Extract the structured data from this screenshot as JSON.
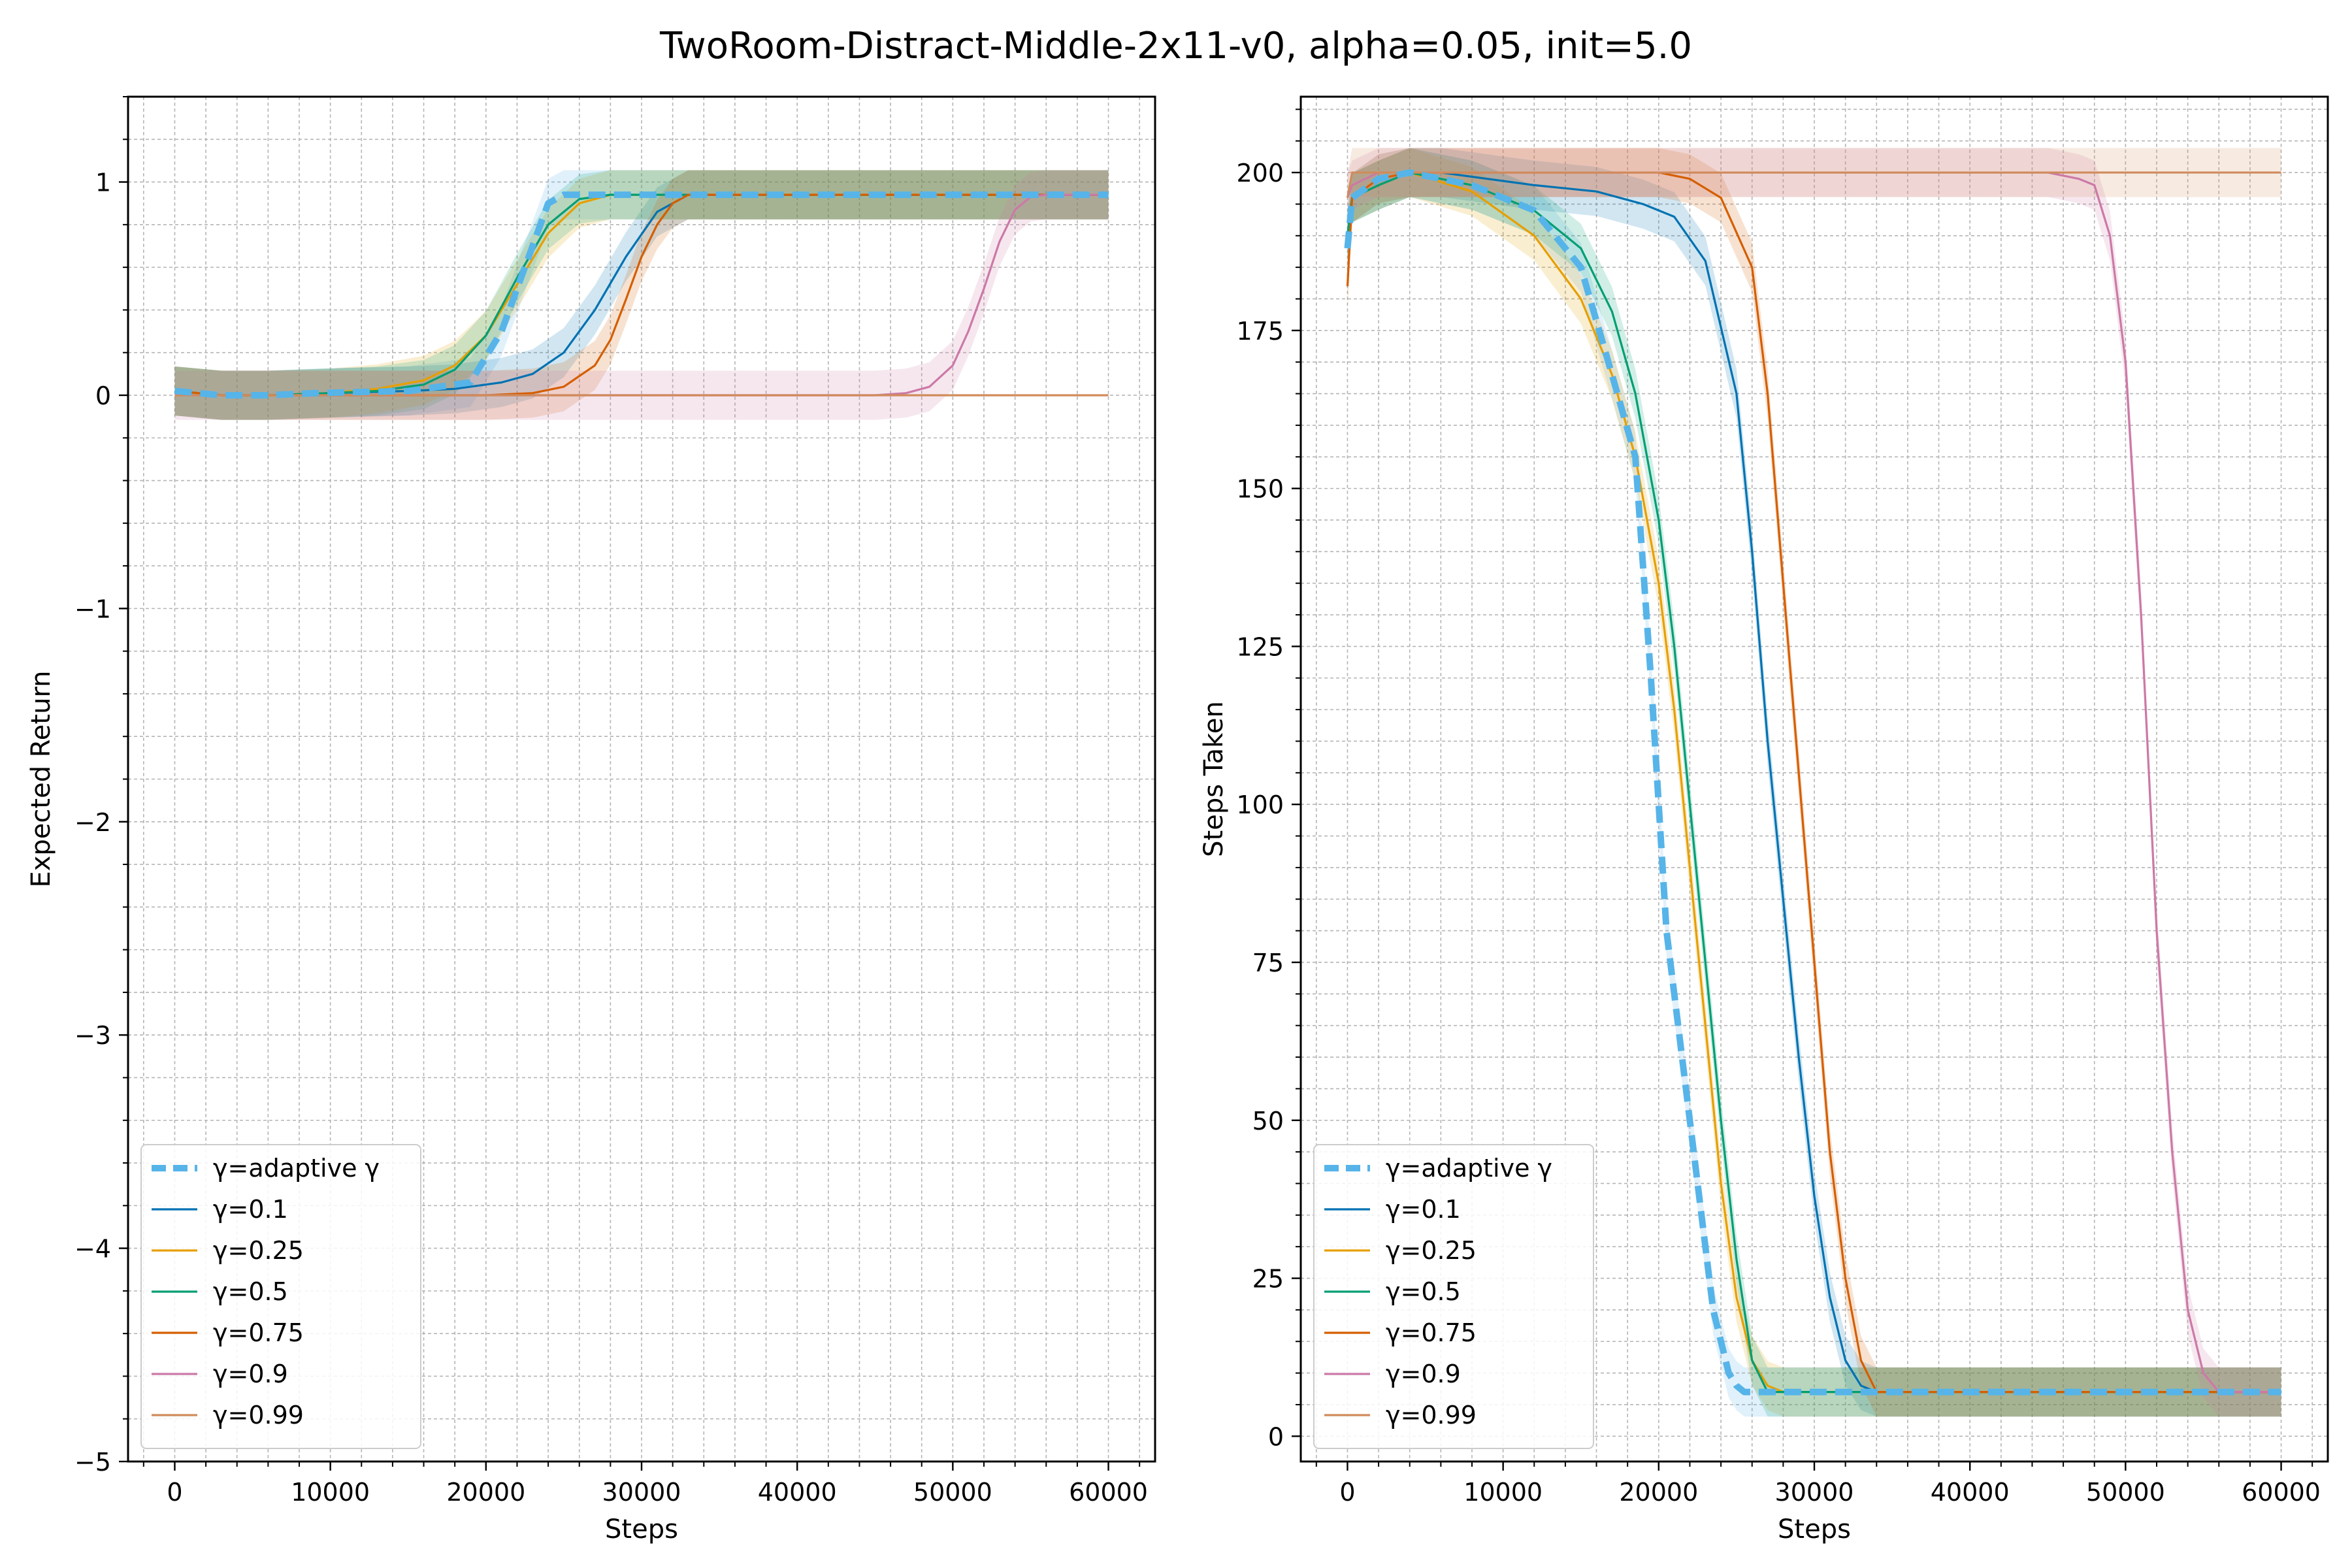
{
  "figure": {
    "title": "TwoRoom-Distract-Middle-2x11-v0, alpha=0.05, init=5.0"
  },
  "chart_data": [
    {
      "type": "line",
      "xlabel": "Steps",
      "ylabel": "Expected Return",
      "xlim": [
        -3000,
        63000
      ],
      "ylim": [
        -5,
        1.4
      ],
      "xticks": [
        0,
        10000,
        20000,
        30000,
        40000,
        50000,
        60000
      ],
      "yticks": [
        -5,
        -4,
        -3,
        -2,
        -1,
        0,
        1
      ],
      "grid": true,
      "legend": "lower-left",
      "series": [
        {
          "name": "γ=adaptive γ",
          "color": "#56B4E9",
          "dashed": true,
          "x": [
            0,
            3000,
            6000,
            9000,
            15000,
            19000,
            21000,
            23000,
            24000,
            25000,
            60000
          ],
          "y": [
            0.02,
            0,
            0,
            0.01,
            0.02,
            0.06,
            0.3,
            0.7,
            0.9,
            0.94,
            0.94
          ]
        },
        {
          "name": "γ=0.1",
          "color": "#0072B2",
          "x": [
            0,
            3000,
            6000,
            10000,
            15000,
            18000,
            21000,
            23000,
            25000,
            27000,
            29000,
            31000,
            33000,
            60000
          ],
          "y": [
            0.02,
            0,
            0,
            0.01,
            0.02,
            0.03,
            0.06,
            0.1,
            0.2,
            0.4,
            0.65,
            0.86,
            0.94,
            0.94
          ]
        },
        {
          "name": "γ=0.25",
          "color": "#E69F00",
          "x": [
            0,
            3000,
            6000,
            10000,
            13000,
            16000,
            18000,
            20000,
            22000,
            24000,
            26000,
            28000,
            60000
          ],
          "y": [
            0.02,
            0,
            0,
            0.01,
            0.03,
            0.07,
            0.14,
            0.28,
            0.52,
            0.76,
            0.9,
            0.94,
            0.94
          ]
        },
        {
          "name": "γ=0.5",
          "color": "#009E73",
          "x": [
            0,
            3000,
            6000,
            10000,
            13000,
            16000,
            18000,
            20000,
            22000,
            24000,
            26000,
            28000,
            60000
          ],
          "y": [
            0.02,
            0,
            0,
            0.01,
            0.02,
            0.05,
            0.12,
            0.28,
            0.55,
            0.8,
            0.92,
            0.94,
            0.94
          ]
        },
        {
          "name": "γ=0.75",
          "color": "#D55E00",
          "x": [
            0,
            3000,
            6000,
            10000,
            20000,
            23000,
            25000,
            27000,
            28000,
            29000,
            30000,
            31000,
            32000,
            33000,
            60000
          ],
          "y": [
            0.02,
            0,
            0,
            0,
            0,
            0.01,
            0.04,
            0.14,
            0.26,
            0.45,
            0.65,
            0.8,
            0.9,
            0.94,
            0.94
          ]
        },
        {
          "name": "γ=0.9",
          "color": "#CC79A7",
          "x": [
            0,
            45000,
            47000,
            48500,
            50000,
            51000,
            52000,
            53000,
            54000,
            55000,
            56000,
            60000
          ],
          "y": [
            0,
            0,
            0.01,
            0.04,
            0.14,
            0.3,
            0.5,
            0.72,
            0.87,
            0.93,
            0.94,
            0.94
          ]
        },
        {
          "name": "γ=0.99",
          "color": "#D08B5B",
          "x": [
            0,
            60000
          ],
          "y": [
            0,
            0
          ]
        }
      ]
    },
    {
      "type": "line",
      "xlabel": "Steps",
      "ylabel": "Steps Taken",
      "xlim": [
        -3000,
        63000
      ],
      "ylim": [
        -4,
        212
      ],
      "xticks": [
        0,
        10000,
        20000,
        30000,
        40000,
        50000,
        60000
      ],
      "yticks": [
        0,
        25,
        50,
        75,
        100,
        125,
        150,
        175,
        200
      ],
      "grid": true,
      "legend": "lower-left",
      "series": [
        {
          "name": "γ=adaptive γ",
          "color": "#56B4E9",
          "dashed": true,
          "x": [
            0,
            300,
            2000,
            4000,
            8000,
            12000,
            15000,
            17000,
            18500,
            19500,
            20500,
            21500,
            22500,
            23500,
            24500,
            25000,
            25500,
            26500,
            60000
          ],
          "y": [
            188,
            196,
            199,
            200,
            198,
            194,
            185,
            168,
            155,
            120,
            80,
            60,
            40,
            20,
            10,
            8,
            7,
            7,
            7
          ]
        },
        {
          "name": "γ=0.1",
          "color": "#0072B2",
          "x": [
            0,
            300,
            2000,
            4000,
            6000,
            12000,
            16000,
            19000,
            21000,
            23000,
            25000,
            26000,
            27000,
            28000,
            29000,
            30000,
            31000,
            32000,
            33000,
            34000,
            60000
          ],
          "y": [
            190,
            196,
            198,
            200,
            200,
            198,
            197,
            195,
            193,
            186,
            165,
            140,
            110,
            85,
            60,
            38,
            22,
            12,
            8,
            7,
            7
          ]
        },
        {
          "name": "γ=0.25",
          "color": "#E69F00",
          "x": [
            0,
            300,
            2000,
            4000,
            8000,
            12000,
            15000,
            17000,
            18500,
            20000,
            21000,
            22000,
            23000,
            24000,
            25000,
            26000,
            27000,
            28000,
            60000
          ],
          "y": [
            188,
            196,
            198,
            200,
            197,
            190,
            180,
            168,
            155,
            135,
            115,
            90,
            65,
            40,
            22,
            12,
            8,
            7,
            7
          ]
        },
        {
          "name": "γ=0.5",
          "color": "#009E73",
          "x": [
            0,
            300,
            2000,
            4000,
            8000,
            12000,
            15000,
            17000,
            18500,
            20000,
            21000,
            22000,
            23000,
            24000,
            25000,
            26000,
            27000,
            60000
          ],
          "y": [
            190,
            196,
            198,
            200,
            198,
            194,
            188,
            178,
            165,
            145,
            125,
            100,
            75,
            50,
            28,
            12,
            7,
            7
          ]
        },
        {
          "name": "γ=0.75",
          "color": "#D55E00",
          "x": [
            0,
            300,
            2000,
            4000,
            6000,
            15000,
            20000,
            22000,
            24000,
            26000,
            27000,
            28000,
            29000,
            30000,
            31000,
            32000,
            33000,
            34000,
            60000
          ],
          "y": [
            182,
            196,
            199,
            200,
            200,
            200,
            200,
            199,
            196,
            185,
            165,
            135,
            105,
            75,
            45,
            25,
            12,
            7,
            7
          ]
        },
        {
          "name": "γ=0.9",
          "color": "#CC79A7",
          "x": [
            0,
            300,
            2000,
            4000,
            45000,
            47000,
            48000,
            49000,
            50000,
            51000,
            52000,
            53000,
            54000,
            55000,
            56000,
            57000,
            60000
          ],
          "y": [
            196,
            198,
            200,
            200,
            200,
            199,
            198,
            190,
            170,
            130,
            80,
            45,
            20,
            10,
            7,
            7,
            7
          ]
        },
        {
          "name": "γ=0.99",
          "color": "#D08B5B",
          "x": [
            0,
            300,
            60000
          ],
          "y": [
            196,
            200,
            200
          ]
        }
      ]
    }
  ]
}
